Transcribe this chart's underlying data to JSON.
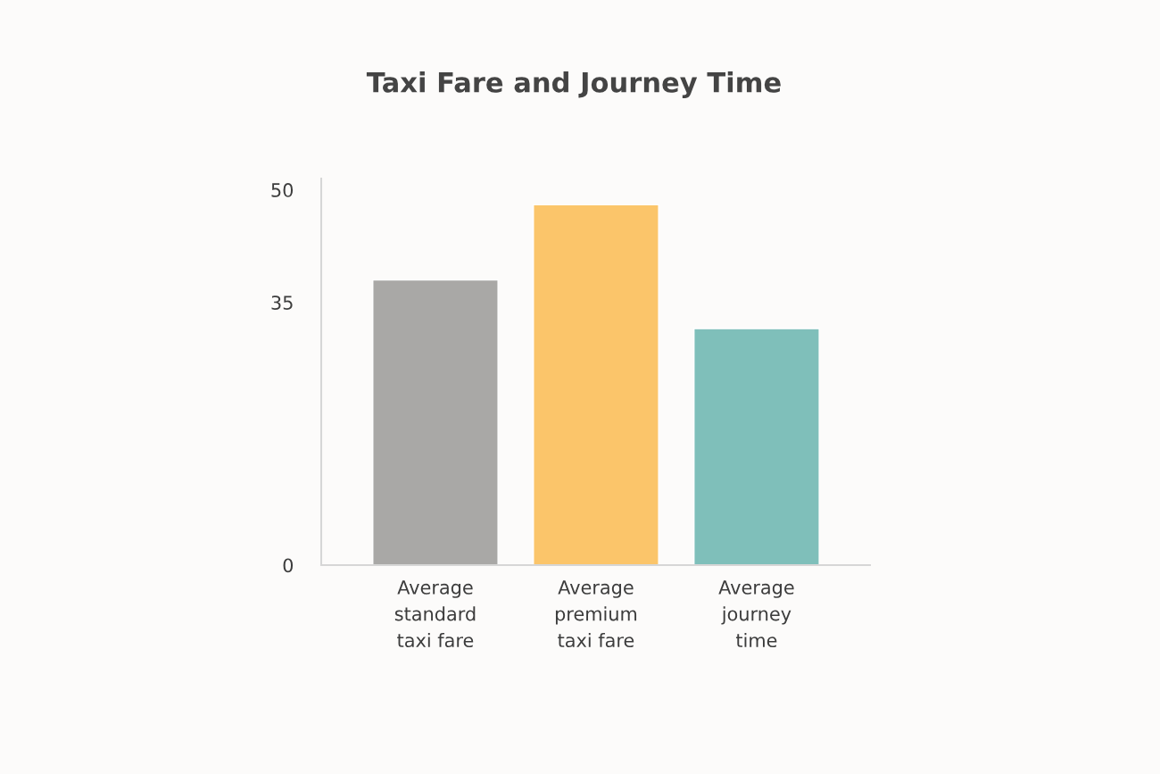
{
  "chart_data": {
    "type": "bar",
    "title": "Taxi Fare and Journey Time",
    "categories": [
      "Average\nstandard\ntaxi fare",
      "Average\npremium\ntaxi fare",
      "Average\njourney\ntime"
    ],
    "values": [
      38,
      48,
      31.5
    ],
    "colors": [
      "#a9a8a6",
      "#fbc56a",
      "#7fbfba"
    ],
    "ylim": [
      0,
      51.5
    ],
    "yticks": [
      0,
      35,
      50
    ],
    "grid": false
  }
}
